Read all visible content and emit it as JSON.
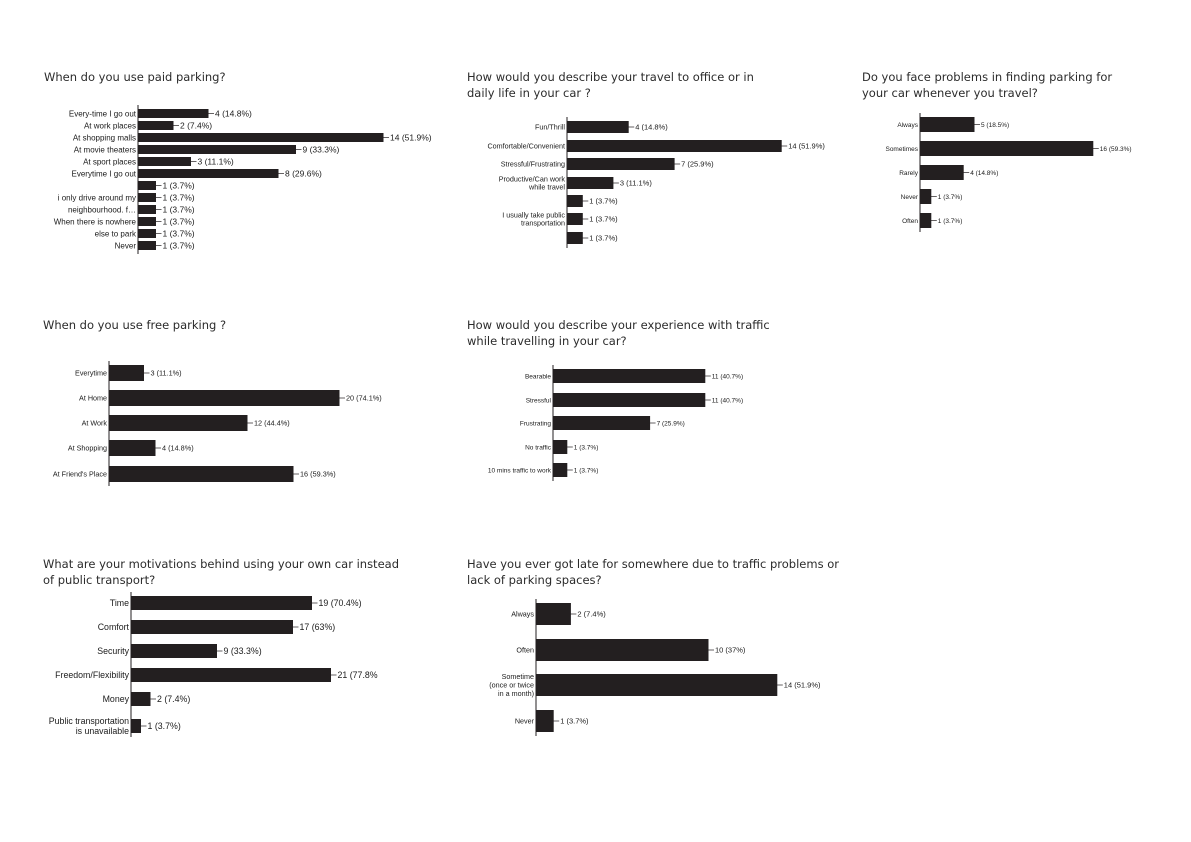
{
  "colors": {
    "bar": "#231f20",
    "axis": "#231f20",
    "text": "#1b1b1b"
  },
  "chart_data": [
    {
      "type": "bar",
      "orientation": "horizontal",
      "title": "When do you use paid parking?",
      "categories": [
        "Every-time I go out",
        "At work places",
        "At shopping malls",
        "At movie theaters",
        "At sport places",
        "Everytime I go out",
        "",
        "i only drive around my",
        "neighbourhood. f…",
        "When there is nowhere",
        "else to park",
        "Never"
      ],
      "values": [
        4,
        2,
        14,
        9,
        3,
        8,
        1,
        1,
        1,
        1,
        1,
        1
      ],
      "data_labels": [
        "4 (14.8%)",
        "2 (7.4%)",
        "14 (51.9%)",
        "9 (33.3%)",
        "3 (11.1%)",
        "8 (29.6%)",
        "1 (3.7%)",
        "1 (3.7%)",
        "1 (3.7%)",
        "1 (3.7%)",
        "1 (3.7%)",
        "1 (3.7%)"
      ]
    },
    {
      "type": "bar",
      "orientation": "horizontal",
      "title": "How would you describe your travel to office or in\ndaily life in your car ?",
      "categories": [
        "Fun/Thrill",
        "Comfortable/Convenient",
        "Stressful/Frustrating",
        "Productive/Can work\nwhile travel",
        "",
        "I usually take public\ntransportation",
        ""
      ],
      "values": [
        4,
        14,
        7,
        3,
        1,
        1,
        1
      ],
      "data_labels": [
        "4 (14.8%)",
        "14 (51.9%)",
        "7 (25.9%)",
        "3 (11.1%)",
        "1 (3.7%)",
        "1 (3.7%)",
        "1 (3.7%)"
      ]
    },
    {
      "type": "bar",
      "orientation": "horizontal",
      "title": "Do you face problems in finding parking for\nyour car whenever you travel?",
      "categories": [
        "Always",
        "Sometimes",
        "Rarely",
        "Never",
        "Often"
      ],
      "values": [
        5,
        16,
        4,
        1,
        1
      ],
      "data_labels": [
        "5 (18.5%)",
        "16 (59.3%)",
        "4 (14.8%)",
        "1 (3.7%)",
        "1 (3.7%)"
      ]
    },
    {
      "type": "bar",
      "orientation": "horizontal",
      "title": "When do you use free parking ?",
      "categories": [
        "Everytime",
        "At Home",
        "At Work",
        "At Shopping",
        "At Friend's Place"
      ],
      "values": [
        3,
        20,
        12,
        4,
        16
      ],
      "data_labels": [
        "3 (11.1%)",
        "20 (74.1%)",
        "12 (44.4%)",
        "4 (14.8%)",
        "16 (59.3%)"
      ]
    },
    {
      "type": "bar",
      "orientation": "horizontal",
      "title": "How would you describe your experience with traffic\nwhile travelling in your car?",
      "categories": [
        "Bearable",
        "Stressful",
        "Frustrating",
        "No traffic",
        "10 mins traffic to work"
      ],
      "values": [
        11,
        11,
        7,
        1,
        1
      ],
      "data_labels": [
        "11 (40.7%)",
        "11 (40.7%)",
        "7 (25.9%)",
        "1 (3.7%)",
        "1 (3.7%)"
      ]
    },
    {
      "type": "bar",
      "orientation": "horizontal",
      "title": "What are your motivations behind using your own car instead\nof public transport?",
      "categories": [
        "Time",
        "Comfort",
        "Security",
        "Freedom/Flexibility",
        "Money",
        "Public transportation\nis unavailable"
      ],
      "values": [
        19,
        17,
        9,
        21,
        2,
        1
      ],
      "data_labels": [
        "19 (70.4%)",
        "17 (63%)",
        "9 (33.3%)",
        "21 (77.8%",
        "2 (7.4%)",
        "1 (3.7%)"
      ]
    },
    {
      "type": "bar",
      "orientation": "horizontal",
      "title": "Have you ever got late for somewhere due to traffic problems or\nlack of parking spaces?",
      "categories": [
        "Always",
        "Often",
        "Sometime\n(once or twice\nin a month)",
        "Never"
      ],
      "values": [
        2,
        10,
        14,
        1
      ],
      "data_labels": [
        "2 (7.4%)",
        "10 (37%)",
        "14 (51.9%)",
        "1 (3.7%)"
      ]
    }
  ]
}
